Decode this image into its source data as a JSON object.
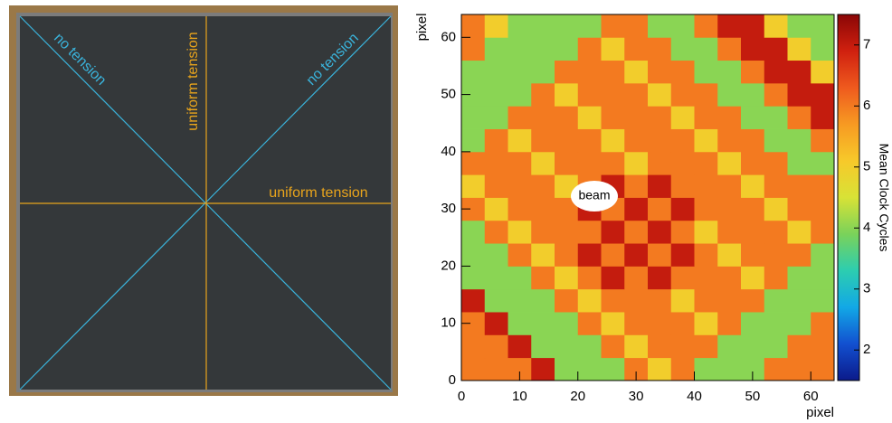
{
  "photo": {
    "labels": [
      "no tension",
      "no tension",
      "uniform tension",
      "uniform tension"
    ]
  },
  "chart_data": {
    "type": "heatmap",
    "xlabel": "pixel",
    "ylabel": "pixel",
    "zlabel": "Mean Clock Cycles",
    "annotation": "beam",
    "xlim": [
      0,
      64
    ],
    "xticks": [
      0,
      10,
      20,
      30,
      40,
      50,
      60
    ],
    "ylim": [
      0,
      64
    ],
    "yticks": [
      0,
      10,
      20,
      30,
      40,
      50,
      60
    ],
    "zlim": [
      1.5,
      7.5
    ],
    "zticks": [
      2,
      3,
      4,
      5,
      6,
      7
    ],
    "colors": [
      "#0b1a8a",
      "#1250d0",
      "#12a8e6",
      "#2ccdb0",
      "#7ad25a",
      "#d8e236",
      "#f7c92a",
      "#f79a22",
      "#ef5a1e",
      "#d0200f",
      "#8a0606"
    ],
    "values": [
      [
        6,
        6,
        6,
        7,
        4,
        4,
        4,
        6,
        5,
        6,
        4,
        4,
        4,
        6,
        6,
        6
      ],
      [
        6,
        6,
        7,
        4,
        4,
        4,
        6,
        5,
        6,
        6,
        6,
        4,
        4,
        4,
        6,
        6
      ],
      [
        6,
        7,
        4,
        4,
        4,
        6,
        5,
        6,
        6,
        6,
        5,
        6,
        4,
        4,
        4,
        6
      ],
      [
        7,
        4,
        4,
        4,
        6,
        5,
        6,
        6,
        6,
        5,
        6,
        6,
        6,
        4,
        4,
        4
      ],
      [
        4,
        4,
        4,
        6,
        5,
        6,
        7,
        6,
        7,
        6,
        6,
        6,
        5,
        6,
        4,
        4
      ],
      [
        4,
        4,
        6,
        5,
        6,
        7,
        6,
        7,
        6,
        7,
        6,
        5,
        6,
        6,
        6,
        4
      ],
      [
        4,
        6,
        5,
        6,
        6,
        6,
        7,
        6,
        7,
        6,
        5,
        6,
        6,
        6,
        5,
        6
      ],
      [
        6,
        5,
        6,
        6,
        6,
        7,
        6,
        7,
        6,
        7,
        6,
        6,
        6,
        5,
        6,
        6
      ],
      [
        5,
        6,
        6,
        6,
        5,
        6,
        7,
        6,
        7,
        6,
        6,
        6,
        5,
        6,
        6,
        6
      ],
      [
        6,
        6,
        6,
        5,
        6,
        6,
        6,
        5,
        6,
        6,
        6,
        5,
        6,
        6,
        4,
        4
      ],
      [
        4,
        6,
        5,
        6,
        6,
        6,
        5,
        6,
        6,
        6,
        5,
        6,
        6,
        4,
        4,
        6
      ],
      [
        4,
        4,
        6,
        6,
        6,
        5,
        6,
        6,
        6,
        5,
        6,
        6,
        4,
        4,
        6,
        7
      ],
      [
        4,
        4,
        4,
        6,
        5,
        6,
        6,
        6,
        5,
        6,
        6,
        4,
        4,
        6,
        7,
        7
      ],
      [
        4,
        4,
        4,
        4,
        6,
        6,
        6,
        5,
        6,
        6,
        4,
        4,
        6,
        7,
        7,
        5
      ],
      [
        6,
        4,
        4,
        4,
        4,
        6,
        5,
        6,
        6,
        4,
        4,
        6,
        7,
        7,
        5,
        4
      ],
      [
        6,
        5,
        4,
        4,
        4,
        4,
        6,
        6,
        4,
        4,
        6,
        7,
        7,
        5,
        4,
        4
      ]
    ]
  }
}
